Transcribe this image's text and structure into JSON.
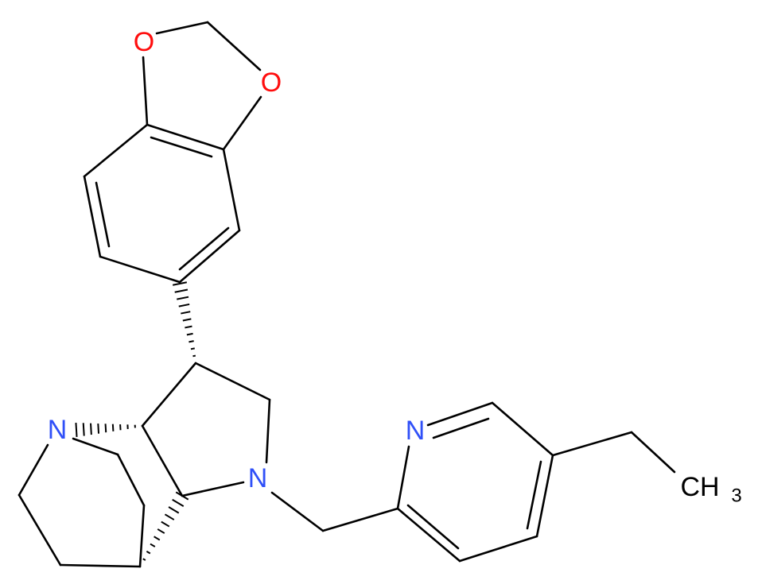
{
  "atoms": [
    {
      "label": "O"
    },
    {
      "label": "O"
    },
    {
      "label": "N"
    },
    {
      "label": "N"
    },
    {
      "label": "N"
    },
    {
      "label": "CH",
      "subscript": "3"
    }
  ]
}
